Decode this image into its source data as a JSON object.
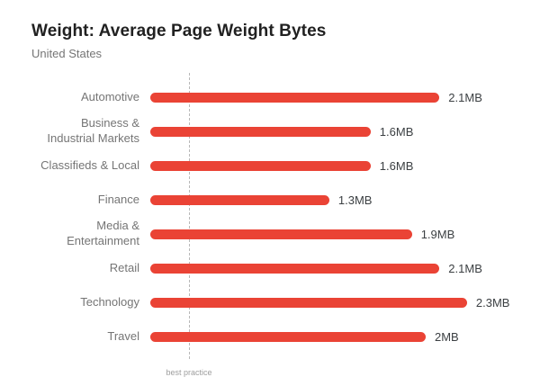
{
  "header": {
    "title": "Weight: Average Page Weight Bytes",
    "subtitle": "United States"
  },
  "annotations": {
    "best_practice_label": "best practice"
  },
  "colors": {
    "bar": "#EA4335",
    "title_text": "#212121",
    "subtitle_text": "#757575",
    "value_text": "#3c4043",
    "guide_line": "#b8b8b8"
  },
  "chart_data": {
    "type": "bar",
    "orientation": "horizontal",
    "title": "Weight: Average Page Weight Bytes",
    "subtitle": "United States",
    "unit": "MB",
    "categories": [
      "Automotive",
      "Business & Industrial Markets",
      "Classifieds & Local",
      "Finance",
      "Media & Entertainment",
      "Retail",
      "Technology",
      "Travel"
    ],
    "values": [
      2.1,
      1.6,
      1.6,
      1.3,
      1.9,
      2.1,
      2.3,
      2.0
    ],
    "value_labels": [
      "2.1MB",
      "1.6MB",
      "1.6MB",
      "1.3MB",
      "1.9MB",
      "2.1MB",
      "2.3MB",
      "2MB"
    ],
    "xlim": [
      0,
      2.5
    ],
    "grid": false,
    "legend": "none",
    "annotations": [
      {
        "type": "vline",
        "label": "best practice",
        "style": "dashed"
      }
    ]
  }
}
